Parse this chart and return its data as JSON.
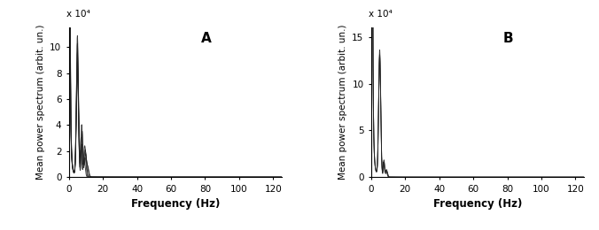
{
  "panel_A_label": "A",
  "panel_B_label": "B",
  "xlabel": "Frequency (Hz)",
  "ylabel": "Mean power spectrum (arbit. un.)",
  "scale_label": "x 10⁴",
  "panel_A_xlim": [
    0,
    125
  ],
  "panel_A_ylim": [
    0,
    115000
  ],
  "panel_A_yticks": [
    0,
    20000,
    40000,
    60000,
    80000,
    100000
  ],
  "panel_A_ytick_labels": [
    "0",
    "2",
    "4",
    "6",
    "8",
    "10"
  ],
  "panel_A_xticks": [
    0,
    20,
    40,
    60,
    80,
    100,
    120
  ],
  "panel_B_xlim": [
    0,
    125
  ],
  "panel_B_ylim": [
    0,
    160000
  ],
  "panel_B_yticks": [
    0,
    50000,
    100000,
    150000
  ],
  "panel_B_ytick_labels": [
    "0",
    "5",
    "10",
    "15"
  ],
  "panel_B_xticks": [
    0,
    20,
    40,
    60,
    80,
    100,
    120
  ],
  "line_color": "#222222",
  "bg_color": "#ffffff"
}
